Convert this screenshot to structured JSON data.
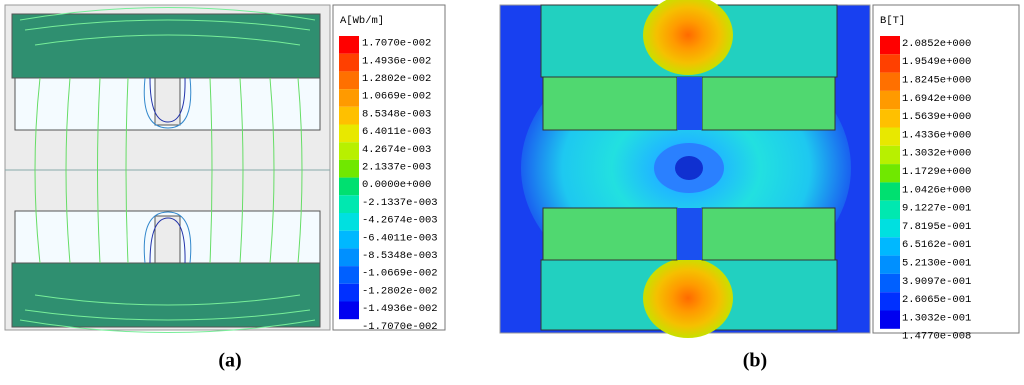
{
  "panels": [
    {
      "label": "(a)",
      "legend_title": "A[Wb/m]",
      "legend_labels": [
        "1.7070e-002",
        "1.4936e-002",
        "1.2802e-002",
        "1.0669e-002",
        "8.5348e-003",
        "6.4011e-003",
        "4.2674e-003",
        "2.1337e-003",
        "0.0000e+000",
        "-2.1337e-003",
        "-4.2674e-003",
        "-6.4011e-003",
        "-8.5348e-003",
        "-1.0669e-002",
        "-1.2802e-002",
        "-1.4936e-002",
        "-1.7070e-002"
      ]
    },
    {
      "label": "(b)",
      "legend_title": "B[T]",
      "legend_labels": [
        "2.0852e+000",
        "1.9549e+000",
        "1.8245e+000",
        "1.6942e+000",
        "1.5639e+000",
        "1.4336e+000",
        "1.3032e+000",
        "1.1729e+000",
        "1.0426e+000",
        "9.1227e-001",
        "7.8195e-001",
        "6.5162e-001",
        "5.2130e-001",
        "3.9097e-001",
        "2.6065e-001",
        "1.3032e-001",
        "1.4770e-008"
      ]
    }
  ]
}
